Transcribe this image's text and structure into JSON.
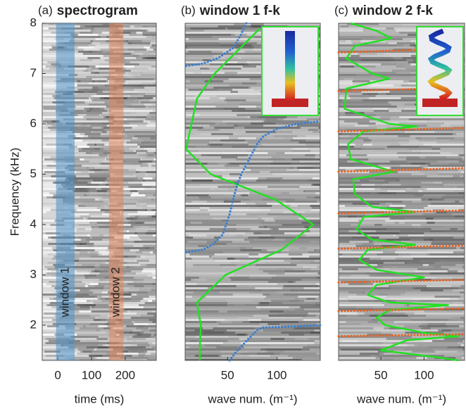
{
  "chart_data": [
    {
      "type": "spectrogram",
      "panel_label": "(a)",
      "title": "spectrogram",
      "xlabel": "time (ms)",
      "ylabel": "Frequency (kHz)",
      "xlim": [
        -46,
        292
      ],
      "ylim": [
        1.3,
        8
      ],
      "xticks": [
        0,
        100,
        200
      ],
      "yticks": [
        2,
        3,
        4,
        5,
        6,
        7,
        8
      ],
      "windows": [
        {
          "name": "window 1",
          "range": [
            -5,
            50
          ],
          "color": "#4a8fc6"
        },
        {
          "name": "window 2",
          "range": [
            152,
            195
          ],
          "color": "#e0835a"
        }
      ]
    },
    {
      "type": "line",
      "panel_label": "(b)",
      "title": "window 1 f-k",
      "xlabel": "wave num. (m⁻¹)",
      "xlim": [
        7,
        144
      ],
      "ylim": [
        1.3,
        8
      ],
      "xticks": [
        50,
        100
      ],
      "series": [
        {
          "color": "#22e022",
          "style": "solid",
          "x": [
            83,
            37,
            19,
            8,
            33,
            98,
            137,
            105,
            48,
            19,
            23,
            22,
            22
          ],
          "y": [
            7.9,
            7,
            6.5,
            5.5,
            5,
            4.5,
            4,
            3.5,
            3,
            2.45,
            2,
            1.6,
            1.3
          ]
        },
        {
          "color": "#3a7fd0",
          "style": "dotted",
          "x": [
            8,
            25,
            40,
            55,
            63,
            69,
            null,
            8,
            25,
            35,
            45,
            52,
            57,
            60,
            64,
            72,
            80,
            86,
            100,
            120,
            144,
            null,
            52,
            60,
            70,
            80,
            85,
            110,
            144
          ],
          "y": [
            7.15,
            7.2,
            7.3,
            7.5,
            7.75,
            8,
            null,
            3.45,
            3.5,
            3.6,
            3.8,
            4.2,
            4.6,
            4.8,
            5,
            5.3,
            5.6,
            5.75,
            5.9,
            6,
            6.05,
            null,
            1.3,
            1.5,
            1.7,
            1.9,
            1.95,
            1.97,
            2
          ]
        }
      ]
    },
    {
      "type": "line",
      "panel_label": "(c)",
      "title": "window 2 f-k",
      "xlabel": "wave num. (m⁻¹)",
      "xlim": [
        1,
        147
      ],
      "ylim": [
        1.3,
        8
      ],
      "xticks": [
        50,
        100
      ],
      "series": [
        {
          "color": "#22e022",
          "style": "solid",
          "x": [
            15,
            45,
            62,
            20,
            10,
            40,
            60,
            10,
            8,
            60,
            92,
            30,
            12,
            15,
            65,
            18,
            20,
            40,
            90,
            30,
            22,
            40,
            90,
            35,
            25,
            45,
            100,
            45,
            35,
            60,
            128,
            60,
            45,
            55,
            100,
            140,
            80,
            50,
            120,
            140
          ],
          "y": [
            8,
            7.85,
            7.7,
            7.55,
            7.3,
            7,
            6.9,
            6.7,
            6.3,
            6,
            5.95,
            5.85,
            5.6,
            5.3,
            5.05,
            4.9,
            4.6,
            4.35,
            4.25,
            4.15,
            3.9,
            3.7,
            3.6,
            3.5,
            3.3,
            3.1,
            2.95,
            2.8,
            2.6,
            2.45,
            2.4,
            2.3,
            2.15,
            2,
            1.85,
            1.78,
            1.7,
            1.5,
            1.35,
            1.3
          ]
        },
        {
          "color": "#e0662a",
          "style": "dotted",
          "x": [
            1,
            147,
            null,
            1,
            147,
            null,
            1,
            147,
            null,
            1,
            147,
            null,
            1,
            147,
            null,
            1,
            147,
            null,
            1,
            147,
            null,
            1,
            147,
            null,
            1,
            147
          ],
          "y": [
            7.42,
            7.5,
            null,
            6.65,
            6.72,
            null,
            5.85,
            5.92,
            null,
            5.05,
            5.12,
            null,
            4.22,
            4.28,
            null,
            3.52,
            3.58,
            null,
            2.85,
            2.9,
            null,
            2.28,
            2.33,
            null,
            1.78,
            1.82
          ]
        }
      ]
    }
  ]
}
